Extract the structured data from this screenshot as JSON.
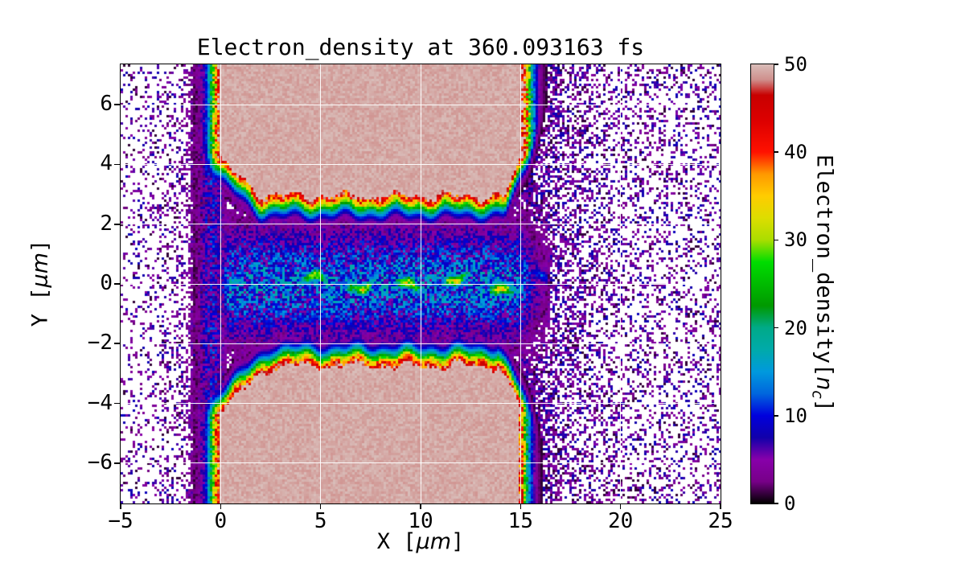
{
  "figure": {
    "title": "Electron_density at 360.093163 fs",
    "x_axis": {
      "label_prefix": "X [",
      "label_unit": "μm",
      "label_suffix": "]",
      "tick_labels": [
        "−5",
        "0",
        "5",
        "10",
        "15",
        "20",
        "25"
      ]
    },
    "y_axis": {
      "label_prefix": "Y [",
      "label_unit": "μm",
      "label_suffix": "]",
      "tick_labels": [
        "6",
        "4",
        "2",
        "0",
        "−2",
        "−4",
        "−6"
      ]
    },
    "colorbar": {
      "tick_labels": [
        "0",
        "10",
        "20",
        "30",
        "40",
        "50"
      ],
      "label_prefix": "Electron_density[",
      "label_var": "n",
      "label_sub": "c",
      "label_suffix": "]"
    }
  },
  "chart_data": {
    "type": "heatmap",
    "title": "Electron_density at 360.093163 fs",
    "xlabel": "X [μm]",
    "ylabel": "Y [μm]",
    "time_fs": 360.093163,
    "xlim": [
      -5,
      25
    ],
    "ylim": [
      -7.35,
      7.35
    ],
    "x_ticks": [
      -5,
      0,
      5,
      10,
      15,
      20,
      25
    ],
    "y_ticks": [
      6,
      4,
      2,
      0,
      -2,
      -4,
      -6
    ],
    "grid": true,
    "grid_color": "#ffffff",
    "colorbar": {
      "label": "Electron_density[n_c]",
      "vmin": 0,
      "vmax": 50,
      "ticks": [
        0,
        10,
        20,
        30,
        40,
        50
      ]
    },
    "colormap": {
      "name": "nipy_spectral-like",
      "masked_below": 0.8,
      "masked_color": "#ffffff",
      "stops": [
        [
          0.0,
          "#000000"
        ],
        [
          0.05,
          "#770088"
        ],
        [
          0.1,
          "#8800aa"
        ],
        [
          0.15,
          "#1100aa"
        ],
        [
          0.2,
          "#0000dd"
        ],
        [
          0.25,
          "#0066dd"
        ],
        [
          0.3,
          "#0099dd"
        ],
        [
          0.35,
          "#00aaaa"
        ],
        [
          0.4,
          "#00aa88"
        ],
        [
          0.45,
          "#009900"
        ],
        [
          0.5,
          "#00bb00"
        ],
        [
          0.55,
          "#00dd00"
        ],
        [
          0.6,
          "#aadd00"
        ],
        [
          0.65,
          "#dddd00"
        ],
        [
          0.7,
          "#ffcc00"
        ],
        [
          0.75,
          "#ff9900"
        ],
        [
          0.8,
          "#ff1100"
        ],
        [
          0.87,
          "#dd0000"
        ],
        [
          0.93,
          "#c80000"
        ],
        [
          0.965,
          "#cf8f8c"
        ],
        [
          1.0,
          "#d9bdb9"
        ]
      ]
    },
    "features": {
      "vmax": 50,
      "slabs": [
        {
          "side": "top",
          "x0": 0,
          "x1": 15.05,
          "edge_base": 3.0,
          "left_rise": [
            2.0,
            0.6
          ],
          "right_rise": [
            14.2,
            1.5
          ]
        },
        {
          "side": "bottom",
          "x0": 0,
          "x1": 14.85,
          "edge_base": 2.8,
          "left_rise": [
            2.6,
            0.55
          ],
          "right_rise": [
            13.9,
            1.2
          ]
        }
      ],
      "channel": {
        "x0": 0,
        "x1": 16.5,
        "half_width": 1.9,
        "peak": 13
      },
      "filament": {
        "x0": 3.5,
        "x1": 16.3,
        "amplitude": 32,
        "width": 0.22,
        "hotspots": [
          6.3,
          13.8
        ]
      },
      "left_wall": {
        "center": -0.45,
        "sigma": 0.75,
        "peak": 9
      },
      "noise": {
        "left_base": 0.13,
        "right_base": 0.24
      },
      "description": "Two overdense plasma slabs (saturated at 50 nc) spanning x=0..15 um above |y|~3 um, rainbow density gradient at slab boundaries, low-density channel along y=0 containing a wiggling filament of 20-40 nc blobs, dark speckled plasma noise left of x=0 and right of x=15, white masked vacuum elsewhere."
    }
  }
}
